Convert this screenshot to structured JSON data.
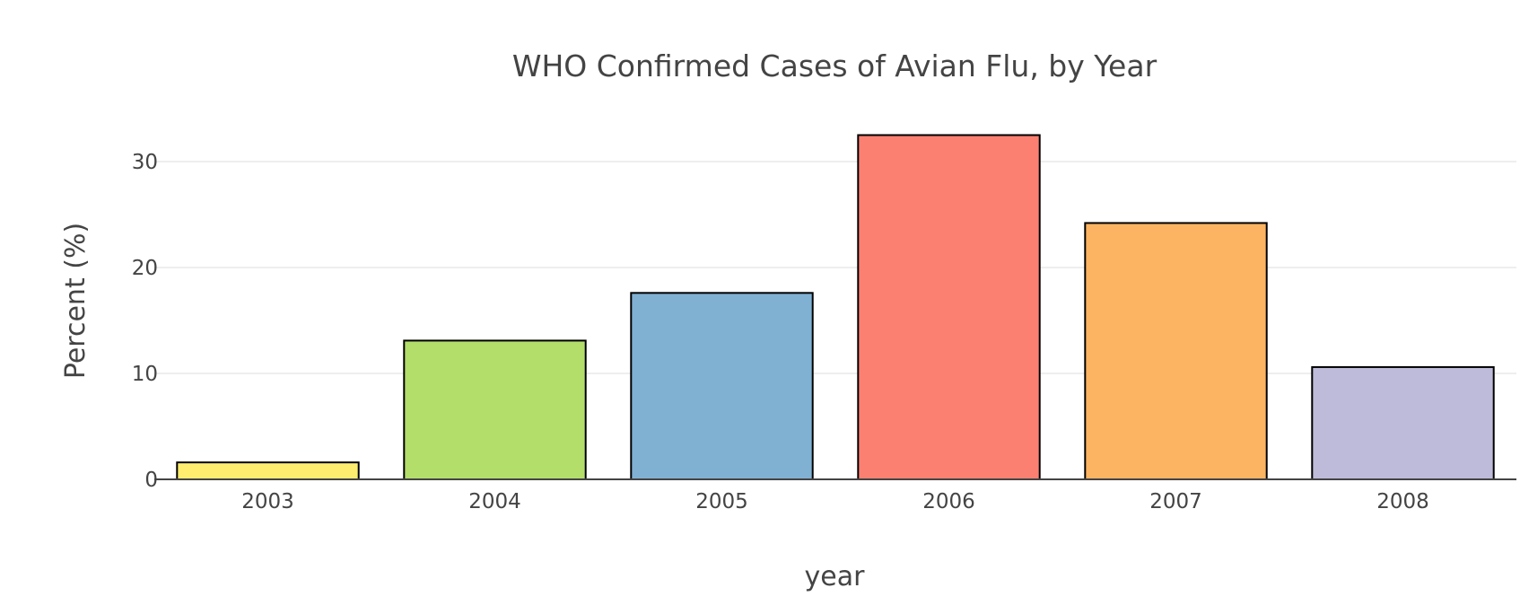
{
  "chart_data": {
    "type": "bar",
    "title": "WHO Confirmed Cases of Avian Flu, by Year",
    "xlabel": "year",
    "ylabel": "Percent (%)",
    "categories": [
      "2003",
      "2004",
      "2005",
      "2006",
      "2007",
      "2008"
    ],
    "values": [
      1.6,
      13.1,
      17.6,
      32.5,
      24.2,
      10.6
    ],
    "colors": [
      "#ffed6f",
      "#b3de69",
      "#80b1d3",
      "#fb8072",
      "#fdb462",
      "#bebada"
    ],
    "ylim": [
      0,
      35
    ],
    "yticks": [
      0,
      10,
      20,
      30
    ],
    "grid": true,
    "legend": "none"
  }
}
